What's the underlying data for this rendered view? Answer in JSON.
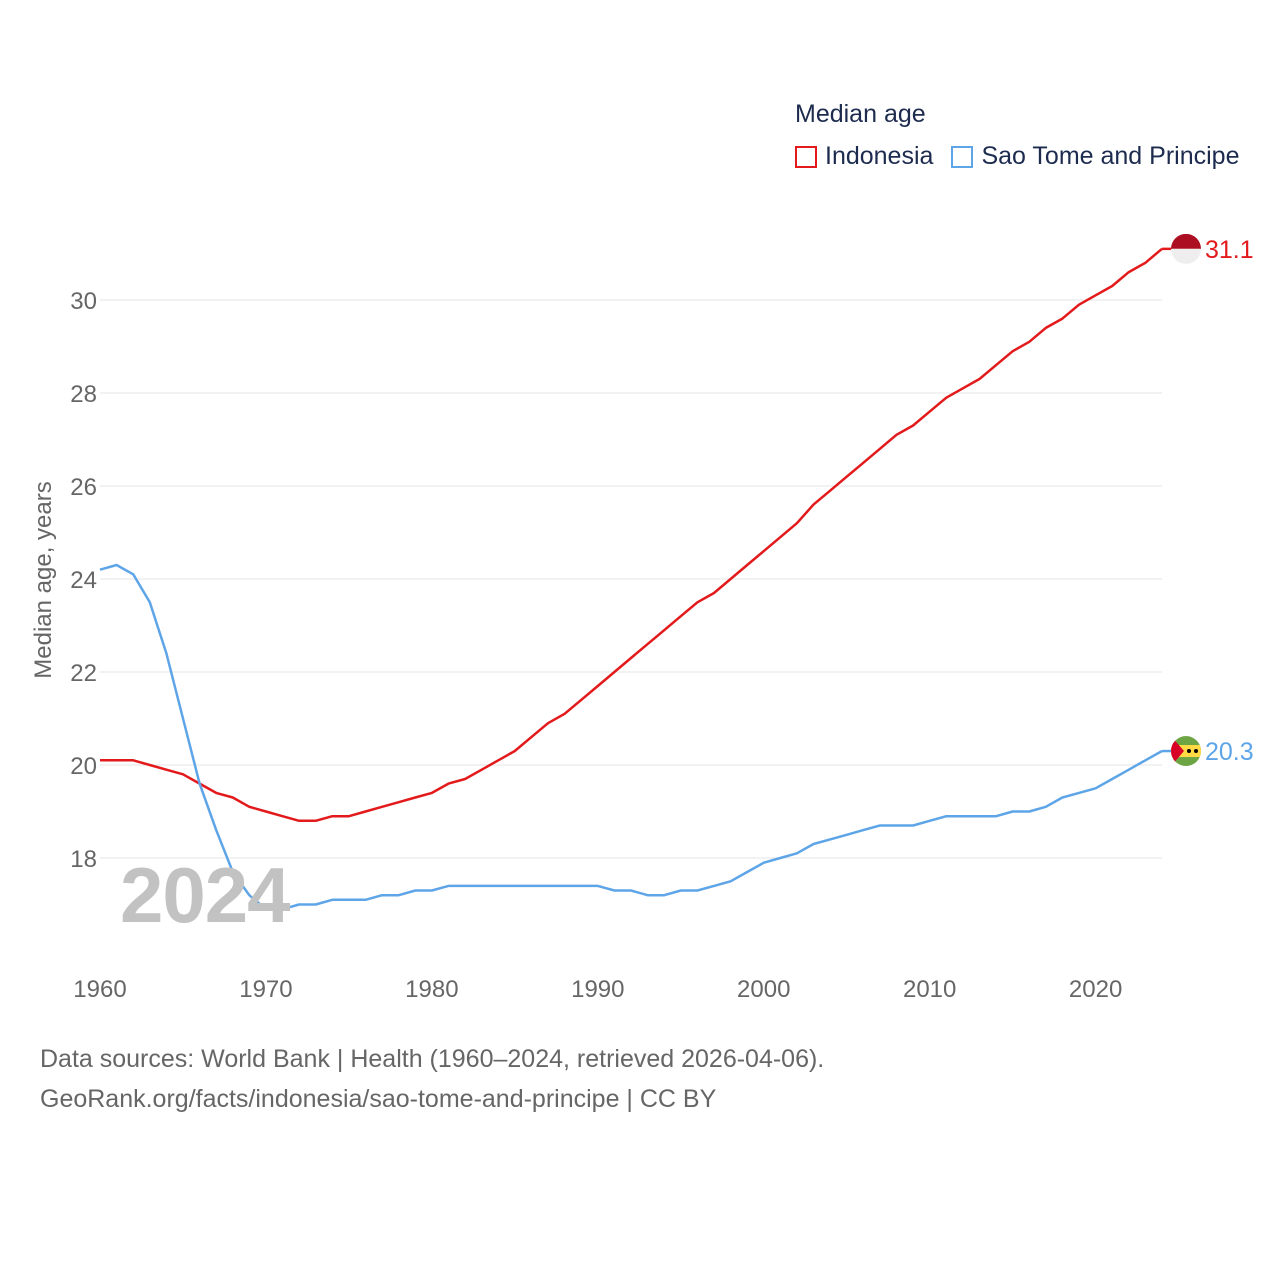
{
  "chart_data": {
    "type": "line",
    "title": "Median age",
    "ylabel": "Median age, years",
    "xlabel": "",
    "xlim": [
      1960,
      2024
    ],
    "ylim": [
      16,
      31
    ],
    "yticks": [
      18,
      20,
      22,
      24,
      26,
      28,
      30
    ],
    "xticks": [
      1960,
      1970,
      1980,
      1990,
      2000,
      2010,
      2020
    ],
    "grid": true,
    "legend_position": "top-right",
    "current_year_label": "2024",
    "x": [
      1960,
      1961,
      1962,
      1963,
      1964,
      1965,
      1966,
      1967,
      1968,
      1969,
      1970,
      1971,
      1972,
      1973,
      1974,
      1975,
      1976,
      1977,
      1978,
      1979,
      1980,
      1981,
      1982,
      1983,
      1984,
      1985,
      1986,
      1987,
      1988,
      1989,
      1990,
      1991,
      1992,
      1993,
      1994,
      1995,
      1996,
      1997,
      1998,
      1999,
      2000,
      2001,
      2002,
      2003,
      2004,
      2005,
      2006,
      2007,
      2008,
      2009,
      2010,
      2011,
      2012,
      2013,
      2014,
      2015,
      2016,
      2017,
      2018,
      2019,
      2020,
      2021,
      2022,
      2023,
      2024
    ],
    "series": [
      {
        "name": "Indonesia",
        "color": "#e31a1c",
        "end_label": "31.1",
        "values": [
          20.1,
          20.1,
          20.1,
          20.0,
          19.9,
          19.8,
          19.6,
          19.4,
          19.3,
          19.1,
          19.0,
          18.9,
          18.8,
          18.8,
          18.9,
          18.9,
          19.0,
          19.1,
          19.2,
          19.3,
          19.4,
          19.6,
          19.7,
          19.9,
          20.1,
          20.3,
          20.6,
          20.9,
          21.1,
          21.4,
          21.7,
          22.0,
          22.3,
          22.6,
          22.9,
          23.2,
          23.5,
          23.7,
          24.0,
          24.3,
          24.6,
          24.9,
          25.2,
          25.6,
          25.9,
          26.2,
          26.5,
          26.8,
          27.1,
          27.3,
          27.6,
          27.9,
          28.1,
          28.3,
          28.6,
          28.9,
          29.1,
          29.4,
          29.6,
          29.9,
          30.1,
          30.3,
          30.6,
          30.8,
          31.1
        ]
      },
      {
        "name": "Sao Tome and Principe",
        "color": "#5ea5e8",
        "end_label": "20.3",
        "values": [
          24.2,
          24.3,
          24.1,
          23.5,
          22.4,
          21.0,
          19.6,
          18.6,
          17.7,
          17.2,
          16.9,
          16.9,
          17.0,
          17.0,
          17.1,
          17.1,
          17.1,
          17.2,
          17.2,
          17.3,
          17.3,
          17.4,
          17.4,
          17.4,
          17.4,
          17.4,
          17.4,
          17.4,
          17.4,
          17.4,
          17.4,
          17.3,
          17.3,
          17.2,
          17.2,
          17.3,
          17.3,
          17.4,
          17.5,
          17.7,
          17.9,
          18.0,
          18.1,
          18.3,
          18.4,
          18.5,
          18.6,
          18.7,
          18.7,
          18.7,
          18.8,
          18.9,
          18.9,
          18.9,
          18.9,
          19.0,
          19.0,
          19.1,
          19.3,
          19.4,
          19.5,
          19.7,
          19.9,
          20.1,
          20.3
        ]
      }
    ]
  },
  "legend": {
    "title": "Median age",
    "items": [
      {
        "label": "Indonesia",
        "color": "#e31a1c"
      },
      {
        "label": "Sao Tome and Principe",
        "color": "#5ea5e8"
      }
    ]
  },
  "flags": {
    "indonesia_icon": "indonesia-flag-icon",
    "sao_tome_icon": "sao-tome-and-principe-flag-icon"
  },
  "footer": {
    "line1": "Data sources: World Bank | Health (1960–2024, retrieved 2026-04-06).",
    "line2": "GeoRank.org/facts/indonesia/sao-tome-and-principe | CC BY"
  }
}
